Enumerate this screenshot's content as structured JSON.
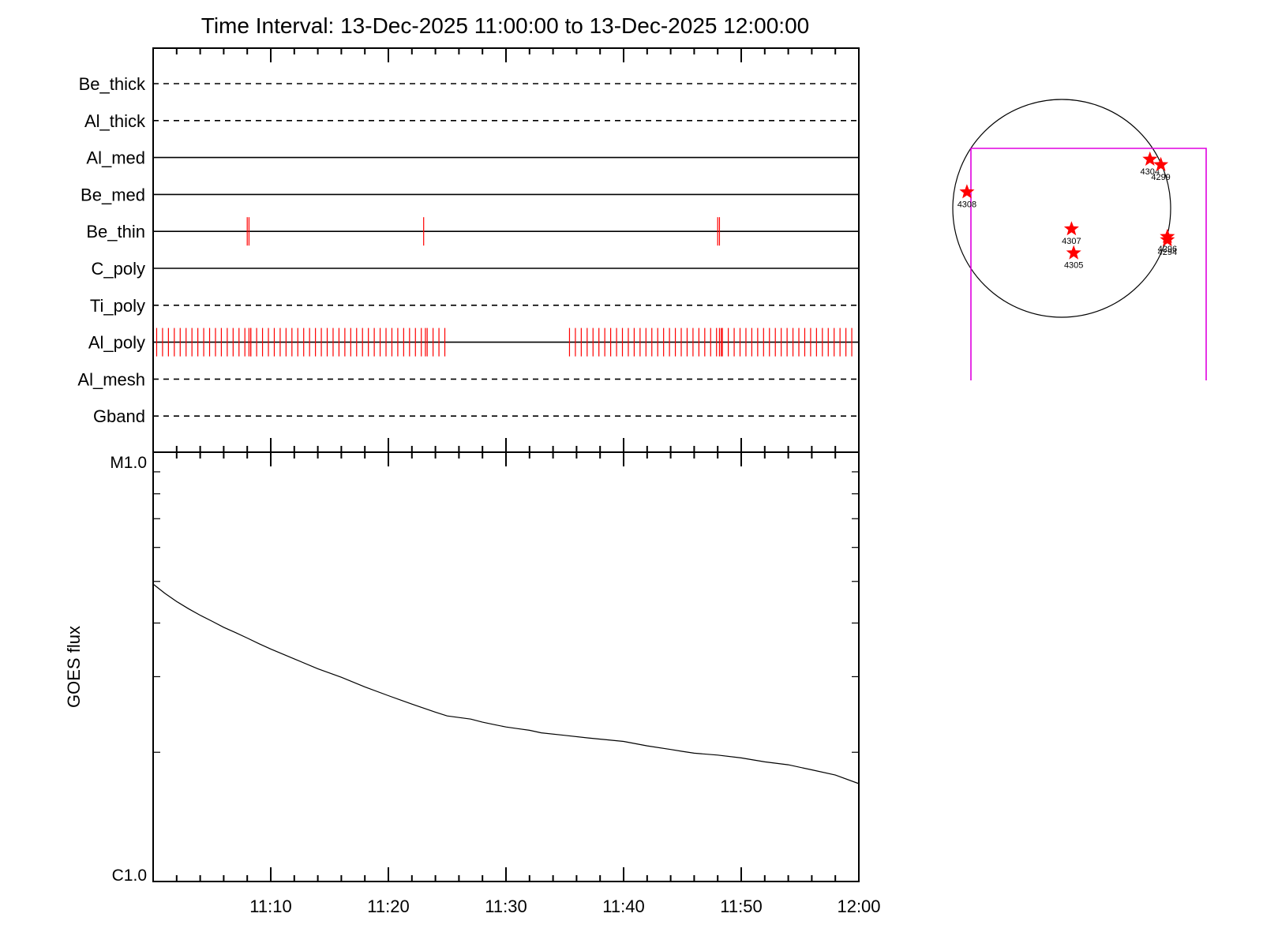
{
  "title": "Time Interval: 13-Dec-2025 11:00:00 to 13-Dec-2025 12:00:00",
  "colors": {
    "axis": "#000000",
    "exposure_marks": "#ff0000",
    "flare_stars": "#ff0000",
    "fov_box": "#e000e0",
    "goes_line": "#000000"
  },
  "chart_data": [
    {
      "type": "timeline",
      "title": "Time Interval: 13-Dec-2025 11:00:00 to 13-Dec-2025 12:00:00",
      "x_range_minutes": [
        0,
        60
      ],
      "filters": [
        {
          "name": "Be_thick",
          "style": "dashed",
          "exposures": []
        },
        {
          "name": "Al_thick",
          "style": "dashed",
          "exposures": []
        },
        {
          "name": "Al_med",
          "style": "solid",
          "exposures": []
        },
        {
          "name": "Be_med",
          "style": "solid",
          "exposures": []
        },
        {
          "name": "Be_thin",
          "style": "solid",
          "exposures": [
            8.0,
            8.15,
            23.0,
            48.0,
            48.15
          ]
        },
        {
          "name": "C_poly",
          "style": "solid",
          "exposures": []
        },
        {
          "name": "Ti_poly",
          "style": "dashed",
          "exposures": []
        },
        {
          "name": "Al_poly",
          "style": "solid",
          "exposures_groups": [
            {
              "start": 0.3,
              "end": 25.0,
              "step": 0.5,
              "extra": [
                8.15,
                8.3,
                23.15
              ]
            },
            {
              "start": 35.4,
              "end": 59.6,
              "step": 0.5,
              "extra": [
                48.15,
                48.3
              ]
            }
          ]
        },
        {
          "name": "Al_mesh",
          "style": "dashed",
          "exposures": []
        },
        {
          "name": "Gband",
          "style": "dashed",
          "exposures": []
        }
      ]
    },
    {
      "type": "line",
      "ylabel": "GOES flux",
      "y_scale": "log",
      "ylim": [
        1e-05,
        0.0001
      ],
      "y_tick_labels": [
        "C1.0",
        "M1.0"
      ],
      "x_tick_labels": [
        "11:10",
        "11:20",
        "11:30",
        "11:40",
        "11:50",
        "12:00"
      ],
      "x_ticks_minutes": [
        10,
        20,
        30,
        40,
        50,
        60
      ],
      "series": [
        {
          "x_minutes": [
            0,
            1,
            2,
            3,
            4,
            5,
            6,
            7,
            8,
            9,
            10,
            12,
            14,
            16,
            18,
            20,
            22,
            24,
            25,
            26,
            27,
            28,
            29,
            30,
            31,
            32,
            33,
            35,
            37,
            40,
            42,
            44,
            45,
            46,
            48,
            50,
            52,
            54,
            56,
            58,
            60
          ],
          "values": [
            4.93e-05,
            4.69e-05,
            4.49e-05,
            4.32e-05,
            4.17e-05,
            4.04e-05,
            3.91e-05,
            3.8e-05,
            3.69e-05,
            3.58e-05,
            3.48e-05,
            3.3e-05,
            3.13e-05,
            2.99e-05,
            2.84e-05,
            2.71e-05,
            2.59e-05,
            2.48e-05,
            2.43e-05,
            2.41e-05,
            2.39e-05,
            2.35e-05,
            2.32e-05,
            2.29e-05,
            2.27e-05,
            2.25e-05,
            2.22e-05,
            2.19e-05,
            2.16e-05,
            2.12e-05,
            2.07e-05,
            2.03e-05,
            2.01e-05,
            1.99e-05,
            1.97e-05,
            1.94e-05,
            1.9e-05,
            1.87e-05,
            1.82e-05,
            1.77e-05,
            1.69e-05
          ]
        }
      ]
    },
    {
      "type": "scatter",
      "description_label": "solar disk map",
      "points": [
        {
          "label": "4308",
          "x": -0.87,
          "y": 0.15
        },
        {
          "label": "4304",
          "x": 0.81,
          "y": 0.45
        },
        {
          "label": "4299",
          "x": 0.91,
          "y": 0.4
        },
        {
          "label": "4307",
          "x": 0.09,
          "y": -0.19
        },
        {
          "label": "4305",
          "x": 0.11,
          "y": -0.41
        },
        {
          "label": "4296",
          "x": 0.97,
          "y": -0.26
        },
        {
          "label": "4294",
          "x": 0.97,
          "y": -0.29
        }
      ]
    }
  ]
}
